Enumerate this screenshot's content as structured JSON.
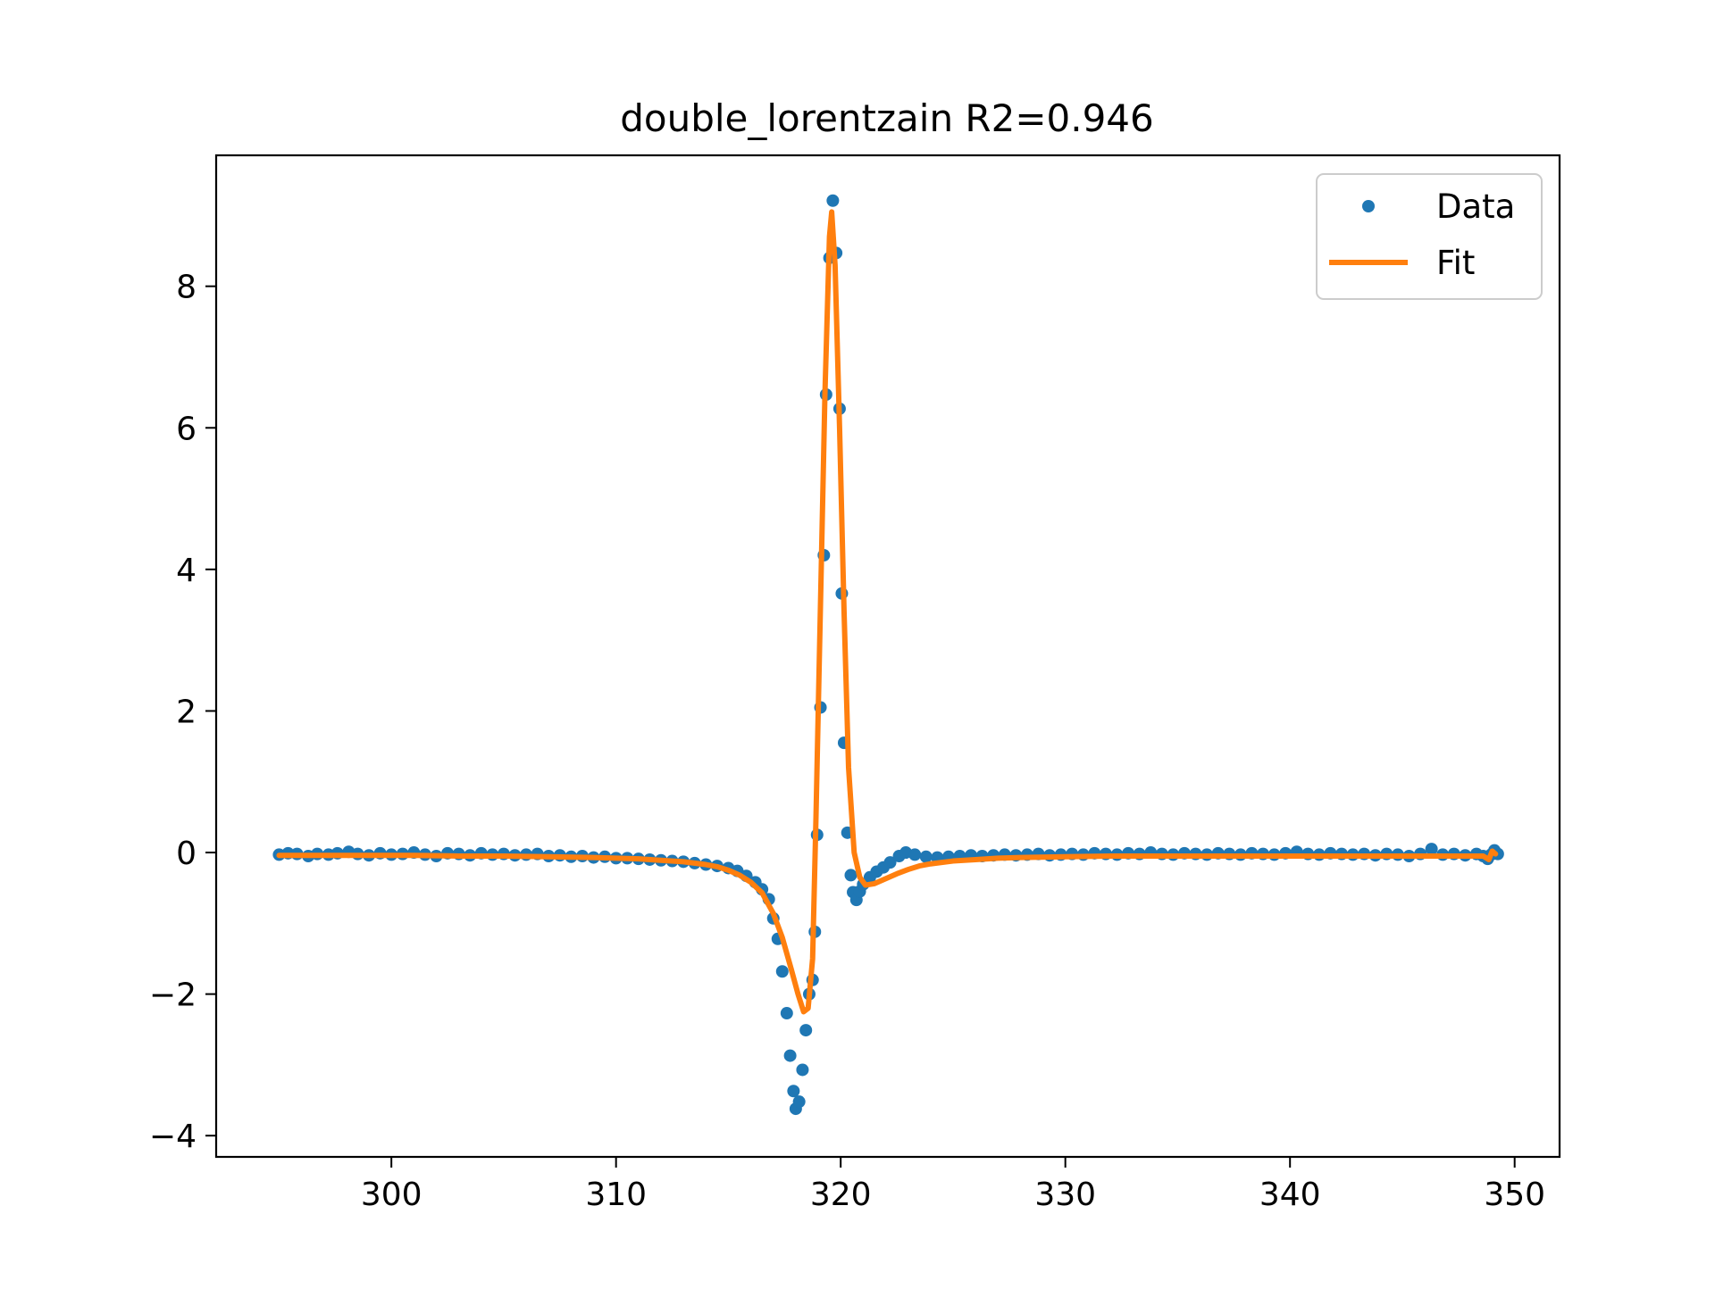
{
  "chart_data": {
    "type": "scatter",
    "title": "double_lorentzain R2=0.946",
    "xlabel": "",
    "ylabel": "",
    "xlim": [
      292.2,
      352.0
    ],
    "ylim": [
      -4.3,
      9.85
    ],
    "xticks": [
      300,
      310,
      320,
      330,
      340,
      350
    ],
    "yticks": [
      -4,
      -2,
      0,
      2,
      4,
      6,
      8
    ],
    "legend_position": "upper right",
    "grid": false,
    "colors": {
      "data": "#1f77b4",
      "fit": "#ff7f0e"
    },
    "series": [
      {
        "name": "Data",
        "kind": "points",
        "points": [
          [
            295.0,
            -0.03
          ],
          [
            295.4,
            -0.01
          ],
          [
            295.8,
            -0.02
          ],
          [
            296.3,
            -0.05
          ],
          [
            296.7,
            -0.02
          ],
          [
            297.2,
            -0.03
          ],
          [
            297.6,
            -0.01
          ],
          [
            298.1,
            0.01
          ],
          [
            298.5,
            -0.02
          ],
          [
            299.0,
            -0.04
          ],
          [
            299.5,
            -0.01
          ],
          [
            300.0,
            -0.03
          ],
          [
            300.5,
            -0.02
          ],
          [
            301.0,
            0.0
          ],
          [
            301.5,
            -0.03
          ],
          [
            302.0,
            -0.05
          ],
          [
            302.5,
            -0.01
          ],
          [
            303.0,
            -0.02
          ],
          [
            303.5,
            -0.04
          ],
          [
            304.0,
            -0.01
          ],
          [
            304.5,
            -0.03
          ],
          [
            305.0,
            -0.02
          ],
          [
            305.5,
            -0.04
          ],
          [
            306.0,
            -0.03
          ],
          [
            306.5,
            -0.02
          ],
          [
            307.0,
            -0.05
          ],
          [
            307.5,
            -0.04
          ],
          [
            308.0,
            -0.06
          ],
          [
            308.5,
            -0.05
          ],
          [
            309.0,
            -0.07
          ],
          [
            309.5,
            -0.06
          ],
          [
            310.0,
            -0.08
          ],
          [
            310.5,
            -0.08
          ],
          [
            311.0,
            -0.09
          ],
          [
            311.5,
            -0.1
          ],
          [
            312.0,
            -0.11
          ],
          [
            312.5,
            -0.12
          ],
          [
            313.0,
            -0.13
          ],
          [
            313.5,
            -0.15
          ],
          [
            314.0,
            -0.17
          ],
          [
            314.5,
            -0.19
          ],
          [
            315.0,
            -0.22
          ],
          [
            315.4,
            -0.26
          ],
          [
            315.8,
            -0.33
          ],
          [
            316.2,
            -0.42
          ],
          [
            316.5,
            -0.52
          ],
          [
            316.8,
            -0.66
          ],
          [
            317.0,
            -0.93
          ],
          [
            317.2,
            -1.22
          ],
          [
            317.4,
            -1.68
          ],
          [
            317.6,
            -2.27
          ],
          [
            317.75,
            -2.87
          ],
          [
            317.9,
            -3.37
          ],
          [
            318.0,
            -3.62
          ],
          [
            318.15,
            -3.52
          ],
          [
            318.3,
            -3.07
          ],
          [
            318.45,
            -2.51
          ],
          [
            318.6,
            -2.0
          ],
          [
            318.75,
            -1.8
          ],
          [
            318.85,
            -1.12
          ],
          [
            318.95,
            0.25
          ],
          [
            319.1,
            2.05
          ],
          [
            319.25,
            4.2
          ],
          [
            319.35,
            6.47
          ],
          [
            319.5,
            8.4
          ],
          [
            319.65,
            9.21
          ],
          [
            319.8,
            8.47
          ],
          [
            319.95,
            6.27
          ],
          [
            320.05,
            3.66
          ],
          [
            320.15,
            1.55
          ],
          [
            320.3,
            0.28
          ],
          [
            320.45,
            -0.32
          ],
          [
            320.55,
            -0.56
          ],
          [
            320.7,
            -0.67
          ],
          [
            320.85,
            -0.55
          ],
          [
            321.0,
            -0.45
          ],
          [
            321.3,
            -0.35
          ],
          [
            321.6,
            -0.27
          ],
          [
            321.9,
            -0.21
          ],
          [
            322.2,
            -0.14
          ],
          [
            322.6,
            -0.05
          ],
          [
            322.9,
            0.0
          ],
          [
            323.3,
            -0.03
          ],
          [
            323.8,
            -0.06
          ],
          [
            324.3,
            -0.07
          ],
          [
            324.8,
            -0.06
          ],
          [
            325.3,
            -0.05
          ],
          [
            325.8,
            -0.04
          ],
          [
            326.3,
            -0.05
          ],
          [
            326.8,
            -0.04
          ],
          [
            327.3,
            -0.03
          ],
          [
            327.8,
            -0.04
          ],
          [
            328.3,
            -0.03
          ],
          [
            328.8,
            -0.02
          ],
          [
            329.3,
            -0.04
          ],
          [
            329.8,
            -0.03
          ],
          [
            330.3,
            -0.02
          ],
          [
            330.8,
            -0.03
          ],
          [
            331.3,
            -0.01
          ],
          [
            331.8,
            -0.02
          ],
          [
            332.3,
            -0.03
          ],
          [
            332.8,
            -0.01
          ],
          [
            333.3,
            -0.02
          ],
          [
            333.8,
            0.0
          ],
          [
            334.3,
            -0.02
          ],
          [
            334.8,
            -0.03
          ],
          [
            335.3,
            -0.01
          ],
          [
            335.8,
            -0.02
          ],
          [
            336.3,
            -0.03
          ],
          [
            336.8,
            -0.01
          ],
          [
            337.3,
            -0.02
          ],
          [
            337.8,
            -0.03
          ],
          [
            338.3,
            -0.01
          ],
          [
            338.8,
            -0.02
          ],
          [
            339.3,
            -0.03
          ],
          [
            339.8,
            -0.01
          ],
          [
            340.3,
            0.01
          ],
          [
            340.8,
            -0.02
          ],
          [
            341.3,
            -0.03
          ],
          [
            341.8,
            -0.01
          ],
          [
            342.3,
            -0.02
          ],
          [
            342.8,
            -0.03
          ],
          [
            343.3,
            -0.02
          ],
          [
            343.8,
            -0.04
          ],
          [
            344.3,
            -0.02
          ],
          [
            344.8,
            -0.03
          ],
          [
            345.3,
            -0.05
          ],
          [
            345.8,
            -0.02
          ],
          [
            346.3,
            0.05
          ],
          [
            346.8,
            -0.03
          ],
          [
            347.3,
            -0.02
          ],
          [
            347.8,
            -0.04
          ],
          [
            348.3,
            -0.02
          ],
          [
            348.6,
            -0.05
          ],
          [
            348.8,
            -0.09
          ],
          [
            348.95,
            -0.03
          ],
          [
            349.1,
            0.03
          ],
          [
            349.25,
            -0.02
          ]
        ]
      },
      {
        "name": "Fit",
        "kind": "line",
        "points": [
          [
            295.0,
            -0.04
          ],
          [
            297.0,
            -0.04
          ],
          [
            299.0,
            -0.04
          ],
          [
            301.0,
            -0.04
          ],
          [
            303.0,
            -0.05
          ],
          [
            305.0,
            -0.05
          ],
          [
            307.0,
            -0.06
          ],
          [
            309.0,
            -0.07
          ],
          [
            310.0,
            -0.08
          ],
          [
            311.0,
            -0.09
          ],
          [
            312.0,
            -0.11
          ],
          [
            313.0,
            -0.13
          ],
          [
            314.0,
            -0.17
          ],
          [
            314.5,
            -0.2
          ],
          [
            315.0,
            -0.25
          ],
          [
            315.5,
            -0.32
          ],
          [
            316.0,
            -0.42
          ],
          [
            316.5,
            -0.57
          ],
          [
            317.0,
            -0.86
          ],
          [
            317.4,
            -1.2
          ],
          [
            317.8,
            -1.65
          ],
          [
            318.1,
            -2.0
          ],
          [
            318.35,
            -2.25
          ],
          [
            318.55,
            -2.2
          ],
          [
            318.75,
            -1.5
          ],
          [
            318.9,
            0.5
          ],
          [
            319.1,
            3.5
          ],
          [
            319.3,
            6.5
          ],
          [
            319.5,
            8.7
          ],
          [
            319.6,
            9.05
          ],
          [
            319.75,
            8.3
          ],
          [
            319.95,
            6.0
          ],
          [
            320.15,
            3.4
          ],
          [
            320.35,
            1.2
          ],
          [
            320.6,
            0.0
          ],
          [
            320.85,
            -0.35
          ],
          [
            321.1,
            -0.46
          ],
          [
            321.5,
            -0.44
          ],
          [
            322.0,
            -0.37
          ],
          [
            322.5,
            -0.3
          ],
          [
            323.0,
            -0.24
          ],
          [
            323.5,
            -0.19
          ],
          [
            324.0,
            -0.16
          ],
          [
            325.0,
            -0.12
          ],
          [
            326.0,
            -0.1
          ],
          [
            327.0,
            -0.08
          ],
          [
            328.0,
            -0.07
          ],
          [
            330.0,
            -0.06
          ],
          [
            332.0,
            -0.05
          ],
          [
            334.0,
            -0.05
          ],
          [
            336.0,
            -0.05
          ],
          [
            338.0,
            -0.05
          ],
          [
            340.0,
            -0.05
          ],
          [
            342.0,
            -0.05
          ],
          [
            344.0,
            -0.05
          ],
          [
            346.0,
            -0.05
          ],
          [
            348.0,
            -0.05
          ],
          [
            348.6,
            -0.05
          ],
          [
            348.85,
            -0.1
          ],
          [
            349.0,
            0.02
          ],
          [
            349.15,
            -0.02
          ]
        ]
      }
    ]
  }
}
